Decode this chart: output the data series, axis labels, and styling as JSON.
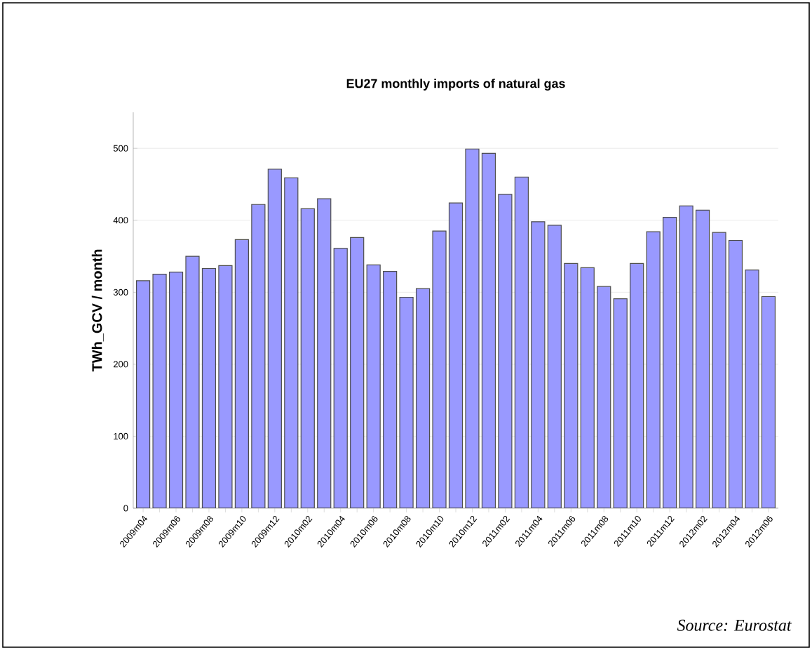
{
  "chart_data": {
    "type": "bar",
    "title": "EU27 monthly imports of natural gas",
    "ylabel": "TWh_GCV / month",
    "categories": [
      "2009m04",
      null,
      "2009m06",
      null,
      "2009m08",
      null,
      "2009m10",
      null,
      "2009m12",
      null,
      "2010m02",
      null,
      "2010m04",
      null,
      "2010m06",
      null,
      "2010m08",
      null,
      "2010m10",
      null,
      "2010m12",
      null,
      "2011m02",
      null,
      "2011m04",
      null,
      "2011m06",
      null,
      "2011m08",
      null,
      "2011m10",
      null,
      "2011m12",
      null,
      "2012m02",
      null,
      "2012m04",
      null,
      "2012m06"
    ],
    "values": [
      316,
      325,
      328,
      350,
      333,
      337,
      373,
      422,
      471,
      459,
      416,
      430,
      361,
      376,
      338,
      329,
      293,
      305,
      385,
      424,
      499,
      493,
      436,
      460,
      398,
      393,
      340,
      334,
      308,
      291,
      340,
      384,
      404,
      420,
      414,
      383,
      372,
      331,
      294
    ],
    "color": "#9999ff",
    "ylim": [
      0,
      550
    ],
    "yticks": [
      0,
      100,
      200,
      300,
      400,
      500
    ],
    "grid": "y",
    "annotations": [
      "*Source: Eurostat*"
    ]
  }
}
